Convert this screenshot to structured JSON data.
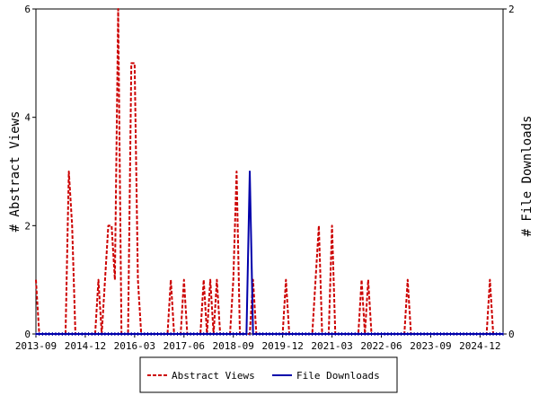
{
  "chart_data": {
    "type": "line",
    "ylabel_left": "# Abstract Views",
    "ylabel_right": "# File Downloads",
    "x_ticks": [
      "2013-09",
      "2014-12",
      "2016-03",
      "2017-06",
      "2018-09",
      "2019-12",
      "2021-03",
      "2022-06",
      "2023-09",
      "2024-12"
    ],
    "x_range": [
      "2013-09",
      "2025-07"
    ],
    "ylim_left": [
      0,
      6
    ],
    "yticks_left": [
      0,
      2,
      4,
      6
    ],
    "ylim_right": [
      0,
      2
    ],
    "yticks_right": [
      0,
      2
    ],
    "legend_position": "bottom-center",
    "series": [
      {
        "name": "Abstract Views",
        "axis": "left",
        "color": "#cc0000",
        "dash": "dashed",
        "points": [
          [
            "2013-09",
            1
          ],
          [
            "2013-10",
            0
          ],
          [
            "2014-06",
            0
          ],
          [
            "2014-07",
            3
          ],
          [
            "2014-08",
            2
          ],
          [
            "2014-09",
            0
          ],
          [
            "2015-03",
            0
          ],
          [
            "2015-04",
            1
          ],
          [
            "2015-05",
            0
          ],
          [
            "2015-06",
            1
          ],
          [
            "2015-07",
            2
          ],
          [
            "2015-08",
            2
          ],
          [
            "2015-09",
            1
          ],
          [
            "2015-10",
            6
          ],
          [
            "2015-11",
            0
          ],
          [
            "2016-01",
            0
          ],
          [
            "2016-02",
            5
          ],
          [
            "2016-03",
            5
          ],
          [
            "2016-04",
            1
          ],
          [
            "2016-05",
            0
          ],
          [
            "2017-01",
            0
          ],
          [
            "2017-02",
            1
          ],
          [
            "2017-03",
            0
          ],
          [
            "2017-05",
            0
          ],
          [
            "2017-06",
            1
          ],
          [
            "2017-07",
            0
          ],
          [
            "2017-11",
            0
          ],
          [
            "2017-12",
            1
          ],
          [
            "2018-01",
            0
          ],
          [
            "2018-02",
            1
          ],
          [
            "2018-03",
            0
          ],
          [
            "2018-04",
            1
          ],
          [
            "2018-05",
            0
          ],
          [
            "2018-08",
            0
          ],
          [
            "2018-09",
            1
          ],
          [
            "2018-10",
            3
          ],
          [
            "2018-11",
            0
          ],
          [
            "2019-02",
            0
          ],
          [
            "2019-03",
            1
          ],
          [
            "2019-04",
            0
          ],
          [
            "2019-12",
            0
          ],
          [
            "2020-01",
            1
          ],
          [
            "2020-02",
            0
          ],
          [
            "2020-09",
            0
          ],
          [
            "2020-10",
            1
          ],
          [
            "2020-11",
            2
          ],
          [
            "2020-12",
            0
          ],
          [
            "2021-02",
            0
          ],
          [
            "2021-03",
            2
          ],
          [
            "2021-04",
            0
          ],
          [
            "2021-11",
            0
          ],
          [
            "2021-12",
            1
          ],
          [
            "2022-01",
            0
          ],
          [
            "2022-02",
            1
          ],
          [
            "2022-03",
            0
          ],
          [
            "2023-01",
            0
          ],
          [
            "2023-02",
            1
          ],
          [
            "2023-03",
            0
          ],
          [
            "2025-02",
            0
          ],
          [
            "2025-03",
            1
          ],
          [
            "2025-04",
            0
          ],
          [
            "2025-07",
            0
          ]
        ]
      },
      {
        "name": "File Downloads",
        "axis": "right",
        "color": "#0000aa",
        "dash": "solid",
        "points": [
          [
            "2013-09",
            0
          ],
          [
            "2019-01",
            0
          ],
          [
            "2019-02",
            1
          ],
          [
            "2019-03",
            0
          ],
          [
            "2025-07",
            0
          ]
        ]
      }
    ]
  }
}
